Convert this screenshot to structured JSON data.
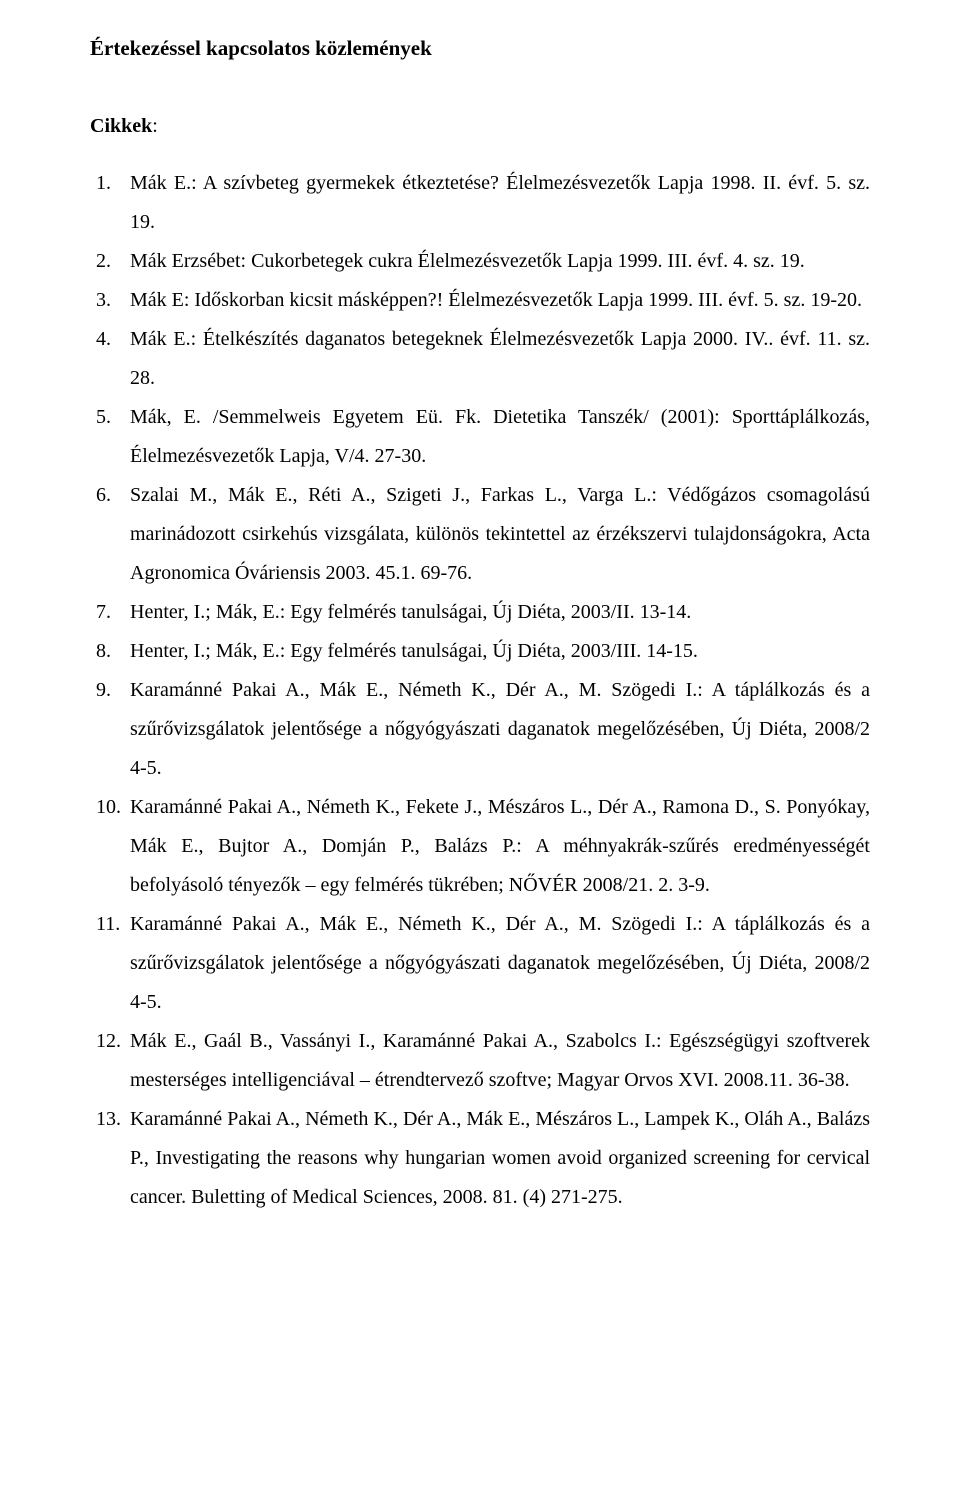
{
  "title": "Értekezéssel kapcsolatos közlemények",
  "section_label_bold": "Cikkek",
  "section_label_rest": ":",
  "items": [
    "Mák E.: A szívbeteg gyermekek étkeztetése? Élelmezésvezetők Lapja 1998. II. évf. 5. sz. 19.",
    "Mák Erzsébet: Cukorbetegek cukra Élelmezésvezetők Lapja 1999. III. évf. 4. sz. 19.",
    "Mák E: Időskorban kicsit másképpen?! Élelmezésvezetők Lapja 1999. III. évf. 5. sz. 19-20.",
    "Mák E.: Ételkészítés daganatos betegeknek Élelmezésvezetők Lapja 2000. IV.. évf. 11. sz. 28.",
    "Mák, E. /Semmelweis Egyetem Eü. Fk. Dietetika Tanszék/ (2001): Sporttáplálkozás, Élelmezésvezetők Lapja, V/4. 27-30.",
    "Szalai M., Mák E., Réti A., Szigeti J., Farkas L., Varga L.: Védőgázos csomagolású marinádozott csirkehús vizsgálata, különös tekintettel az érzékszervi tulajdonságokra, Acta Agronomica Óváriensis 2003. 45.1. 69-76.",
    "Henter, I.; Mák, E.: Egy felmérés tanulságai, Új Diéta, 2003/II. 13-14.",
    "Henter, I.; Mák, E.: Egy felmérés tanulságai, Új Diéta, 2003/III. 14-15.",
    "Karamánné Pakai A., Mák E., Németh K., Dér A., M. Szögedi I.: A táplálkozás és a szűrővizsgálatok jelentősége a nőgyógyászati daganatok megelőzésében, Új Diéta, 2008/2 4-5.",
    "Karamánné Pakai A., Németh K., Fekete J., Mészáros L., Dér A., Ramona D., S. Ponyókay, Mák E., Bujtor A., Domján P., Balázs P.: A méhnyakrák-szűrés eredményességét befolyásoló tényezők – egy felmérés tükrében; NŐVÉR 2008/21. 2. 3-9.",
    "Karamánné Pakai A., Mák E., Németh K., Dér A., M. Szögedi I.: A táplálkozás és a szűrővizsgálatok jelentősége a nőgyógyászati daganatok megelőzésében, Új Diéta, 2008/2 4-5.",
    "Mák E., Gaál B., Vassányi I., Karamánné Pakai A., Szabolcs I.: Egészségügyi szoftverek mesterséges intelligenciával – étrendtervező szoftve; Magyar Orvos XVI. 2008.11. 36-38.",
    "Karamánné Pakai A., Németh K., Dér A., Mák E., Mészáros L., Lampek K., Oláh A., Balázs P., Investigating the reasons why hungarian women avoid organized screening for cervical cancer. Buletting of Medical Sciences, 2008. 81. (4) 271-275."
  ]
}
